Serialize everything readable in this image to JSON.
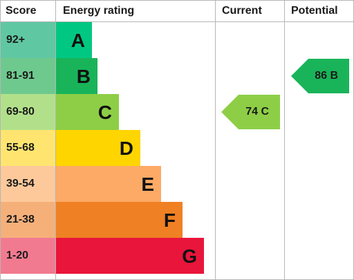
{
  "chart_data": {
    "type": "table",
    "headers": {
      "score": "Score",
      "rating": "Energy rating",
      "current": "Current",
      "potential": "Potential"
    },
    "bands": [
      {
        "score": "92+",
        "letter": "A",
        "color": "#00c781",
        "scoreColor": "#5fc8a3"
      },
      {
        "score": "81-91",
        "letter": "B",
        "color": "#19b459",
        "scoreColor": "#6ec98e"
      },
      {
        "score": "69-80",
        "letter": "C",
        "color": "#8dce46",
        "scoreColor": "#b2e08a"
      },
      {
        "score": "55-68",
        "letter": "D",
        "color": "#ffd500",
        "scoreColor": "#ffe570"
      },
      {
        "score": "39-54",
        "letter": "E",
        "color": "#fcaa65",
        "scoreColor": "#fdc99b"
      },
      {
        "score": "21-38",
        "letter": "F",
        "color": "#ef8023",
        "scoreColor": "#f5b07a"
      },
      {
        "score": "1-20",
        "letter": "G",
        "color": "#e9153b",
        "scoreColor": "#f27a90"
      }
    ],
    "current": {
      "value": 74,
      "band": "C",
      "label": "74 C",
      "color": "#8dce46"
    },
    "potential": {
      "value": 86,
      "band": "B",
      "label": "86 B",
      "color": "#19b459"
    }
  }
}
